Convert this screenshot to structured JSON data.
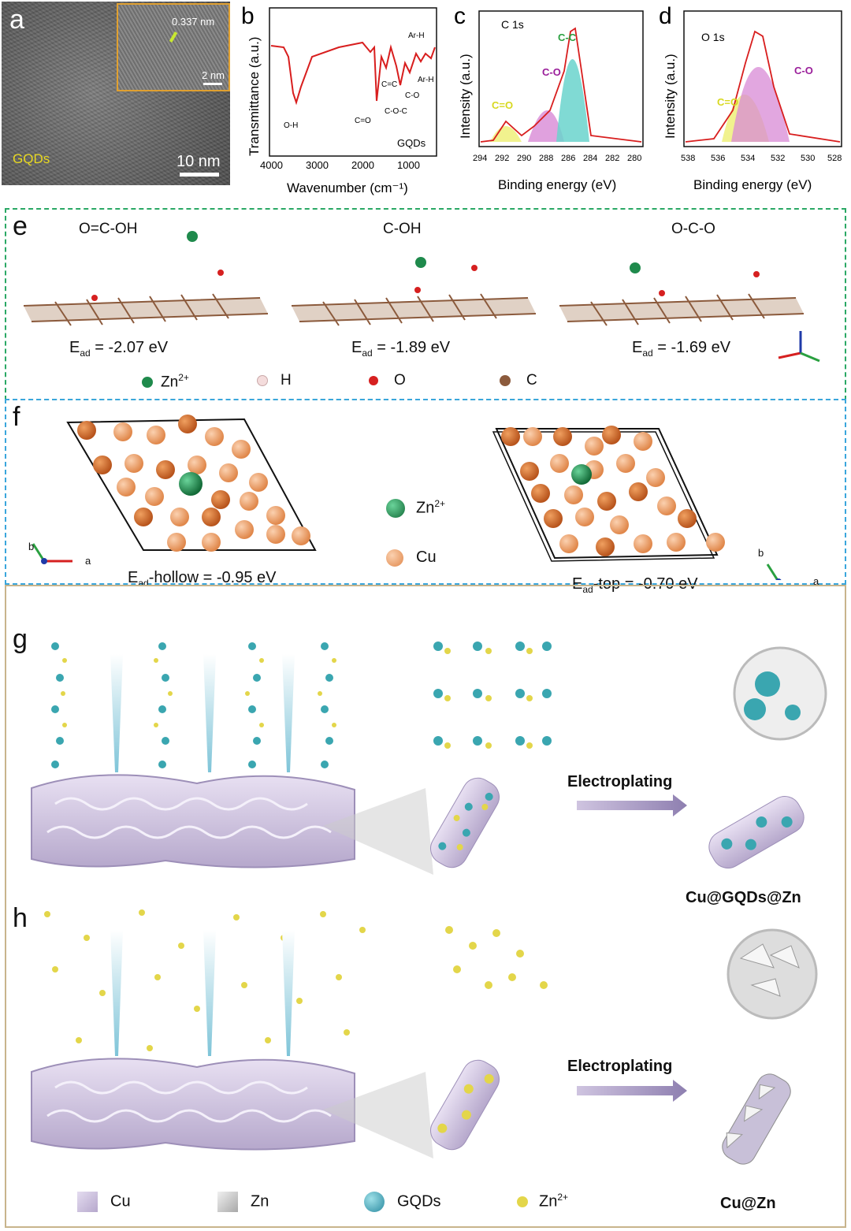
{
  "panels": {
    "a": {
      "label": "a",
      "sample": "GQDs",
      "scale_bar": "10 nm",
      "inset_spacing": "0.337 nm",
      "inset_scale": "2 nm"
    },
    "b": {
      "label": "b",
      "ylabel": "Transmittance (a.u.)",
      "xlabel": "Wavenumber (cm⁻¹)",
      "sample": "GQDs",
      "ticks": [
        "4000",
        "3000",
        "2000",
        "1000"
      ],
      "annotations": [
        "O-H",
        "C=O",
        "C=C",
        "C-O-C",
        "C-O",
        "Ar-H",
        "Ar-H"
      ]
    },
    "c": {
      "label": "c",
      "title": "C 1s",
      "ylabel": "Intensity (a.u.)",
      "xlabel": "Binding energy (eV)",
      "ticks": [
        "294",
        "292",
        "290",
        "288",
        "286",
        "284",
        "282",
        "280"
      ],
      "peaks": [
        "C-C",
        "C-O",
        "C=O"
      ]
    },
    "d": {
      "label": "d",
      "title": "O 1s",
      "ylabel": "Intensity (a.u.)",
      "xlabel": "Binding energy (eV)",
      "ticks": [
        "538",
        "536",
        "534",
        "532",
        "530",
        "528"
      ],
      "peaks": [
        "C-O",
        "C=O"
      ]
    },
    "e": {
      "label": "e",
      "structures": [
        {
          "name": "O=C-OH",
          "energy": "-2.07 eV"
        },
        {
          "name": "C-OH",
          "energy": "-1.89 eV"
        },
        {
          "name": "O-C-O",
          "energy": "-1.69 eV"
        }
      ],
      "e_sym": "E",
      "e_sub": "ad",
      "e_eq": " = ",
      "legend": [
        {
          "label": "Zn",
          "sup": "2+",
          "color": "#1f8a4c"
        },
        {
          "label": "H",
          "sup": "",
          "color": "#f0d8d8"
        },
        {
          "label": "O",
          "sup": "",
          "color": "#d62020"
        },
        {
          "label": "C",
          "sup": "",
          "color": "#8b5a3c"
        }
      ]
    },
    "f": {
      "label": "f",
      "left_energy": {
        "sym": "E",
        "sub": "ad",
        "rest": "-hollow = -0.95 eV"
      },
      "right_energy": {
        "sym": "E",
        "sub": "ad",
        "rest": "-top = -0.70 eV"
      },
      "legend": [
        {
          "label": "Zn",
          "sup": "2+",
          "color": "#1f8a4c"
        },
        {
          "label": "Cu",
          "sup": "",
          "color": "#e0874a"
        }
      ],
      "axis_a": "a",
      "axis_b": "b"
    },
    "g": {
      "label": "g",
      "process": "Electroplating",
      "product": "Cu@GQDs@Zn"
    },
    "h": {
      "label": "h",
      "process": "Electroplating",
      "product": "Cu@Zn"
    },
    "bottom_legend": [
      {
        "label": "Cu"
      },
      {
        "label": "Zn"
      },
      {
        "label": "GQDs"
      },
      {
        "label": "Zn",
        "sup": "2+"
      }
    ]
  }
}
